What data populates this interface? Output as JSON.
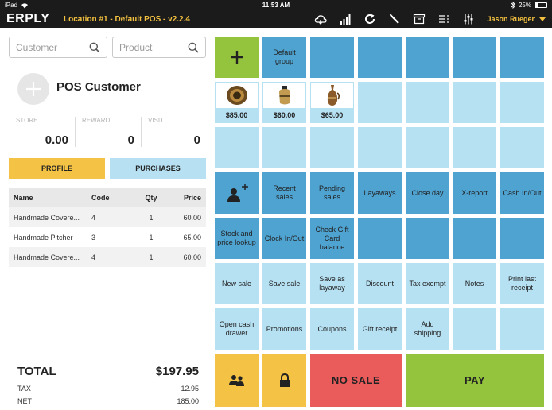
{
  "statusbar": {
    "device": "iPad",
    "time": "11:53 AM",
    "battery": "25%",
    "battery_level": 0.25
  },
  "header": {
    "logo": "ERPLY",
    "location": "Location #1 - Default POS - v2.2.4",
    "user": "Jason Rueger",
    "icons": [
      "cloud-icon",
      "signal-icon",
      "refresh-icon",
      "edit-icon",
      "archive-icon",
      "list-icon",
      "settings-icon"
    ]
  },
  "search": {
    "customer_placeholder": "Customer",
    "product_placeholder": "Product"
  },
  "customer": {
    "name": "POS Customer",
    "store_label": "STORE",
    "store_value": "0.00",
    "reward_label": "REWARD",
    "reward_value": "0",
    "visit_label": "VISIT",
    "visit_value": "0"
  },
  "buttons": {
    "profile": "PROFILE",
    "purchases": "PURCHASES"
  },
  "cart": {
    "headers": {
      "name": "Name",
      "code": "Code",
      "qty": "Qty",
      "price": "Price"
    },
    "rows": [
      {
        "name": "Handmade Covere...",
        "code": "4",
        "qty": "1",
        "price": "60.00"
      },
      {
        "name": "Handmade Pitcher",
        "code": "3",
        "qty": "1",
        "price": "65.00"
      },
      {
        "name": "Handmade Covere...",
        "code": "4",
        "qty": "1",
        "price": "60.00"
      }
    ]
  },
  "totals": {
    "total_label": "TOTAL",
    "total_value": "$197.95",
    "tax_label": "TAX",
    "tax_value": "12.95",
    "net_label": "NET",
    "net_value": "185.00"
  },
  "grid": {
    "default_group": "Default group",
    "products": [
      {
        "price": "$85.00",
        "icon": "plate-icon"
      },
      {
        "price": "$60.00",
        "icon": "jar-icon"
      },
      {
        "price": "$65.00",
        "icon": "pitcher-icon"
      }
    ],
    "recent_sales": "Recent sales",
    "pending_sales": "Pending sales",
    "layaways": "Layaways",
    "close_day": "Close day",
    "x_report": "X-report",
    "cash_in_out": "Cash In/Out",
    "stock_lookup": "Stock and price lookup",
    "clock_in_out": "Clock In/Out",
    "gift_card_balance": "Check Gift Card balance",
    "new_sale": "New sale",
    "save_sale": "Save sale",
    "save_layaway": "Save as layaway",
    "discount": "Discount",
    "tax_exempt": "Tax exempt",
    "notes": "Notes",
    "print_receipt": "Print last receipt",
    "open_cash_drawer": "Open cash drawer",
    "promotions": "Promotions",
    "coupons": "Coupons",
    "gift_receipt": "Gift receipt",
    "add_shipping": "Add shipping",
    "no_sale": "NO SALE",
    "pay": "PAY"
  },
  "colors": {
    "dark_tile": "#4fa3d1",
    "light_tile": "#b6e1f3",
    "green": "#94c43e",
    "yellow": "#f4c244",
    "red": "#ea5b5b",
    "header_bg": "#1b1b1b",
    "accent": "#f3c13f"
  }
}
